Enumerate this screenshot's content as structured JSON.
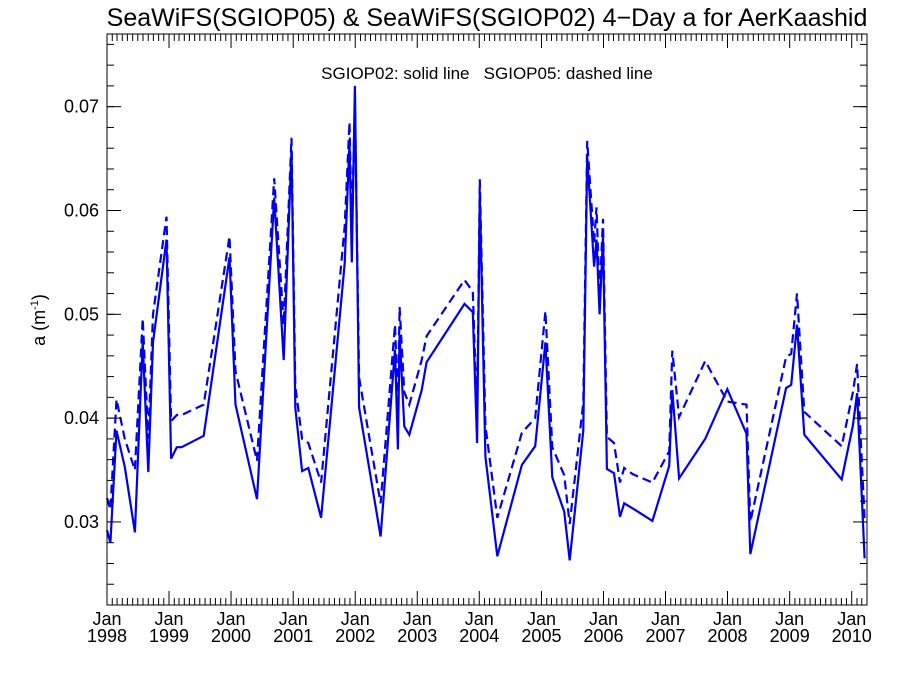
{
  "colors": {
    "series": "#0000ee",
    "axis": "#000000",
    "background": "#ffffff"
  },
  "chart_data": {
    "type": "line",
    "title": "SeaWiFS(SGIOP05) & SeaWiFS(SGIOP02) 4−Day a for AerKaashid",
    "annotation": "SGIOP02: solid line   SGIOP05: dashed line",
    "ylabel": {
      "main": "a (m",
      "sup": "-1",
      "close": ")"
    },
    "xlabel": "",
    "grid": false,
    "legend": "none",
    "xlim": [
      "1998-01-01",
      "2010-04-01"
    ],
    "ylim": [
      0.022,
      0.077
    ],
    "yticks": [
      0.03,
      0.04,
      0.05,
      0.06,
      0.07
    ],
    "ytick_labels": [
      "0.03",
      "0.04",
      "0.05",
      "0.06",
      "0.07"
    ],
    "xticks": [
      "1998-01-01",
      "1999-01-01",
      "2000-01-01",
      "2001-01-01",
      "2002-01-01",
      "2003-01-01",
      "2004-01-01",
      "2005-01-01",
      "2006-01-01",
      "2007-01-01",
      "2008-01-01",
      "2009-01-01",
      "2010-01-01"
    ],
    "xtick_labels": [
      [
        "Jan",
        "1998"
      ],
      [
        "Jan",
        "1999"
      ],
      [
        "Jan",
        "2000"
      ],
      [
        "Jan",
        "2001"
      ],
      [
        "Jan",
        "2002"
      ],
      [
        "Jan",
        "2003"
      ],
      [
        "Jan",
        "2004"
      ],
      [
        "Jan",
        "2005"
      ],
      [
        "Jan",
        "2006"
      ],
      [
        "Jan",
        "2007"
      ],
      [
        "Jan",
        "2008"
      ],
      [
        "Jan",
        "2009"
      ],
      [
        "Jan",
        "2010"
      ]
    ],
    "series": [
      {
        "name": "SGIOP02",
        "style": "solid",
        "x": [
          "1998-01-01",
          "1998-01-21",
          "1998-02-26",
          "1998-04-16",
          "1998-06-14",
          "1998-07-30",
          "1998-09-01",
          "1998-09-29",
          "1998-12-17",
          "1999-01-13",
          "1999-02-16",
          "1999-03-16",
          "1999-07-24",
          "1999-12-23",
          "2000-01-27",
          "2000-06-02",
          "2000-09-11",
          "2000-11-06",
          "2000-12-22",
          "2001-01-13",
          "2001-02-22",
          "2001-03-31",
          "2001-06-14",
          "2001-10-31",
          "2001-11-28",
          "2001-12-12",
          "2001-12-30",
          "2002-01-24",
          "2002-05-30",
          "2002-08-23",
          "2002-09-09",
          "2002-09-19",
          "2002-10-17",
          "2002-11-15",
          "2003-01-27",
          "2003-02-25",
          "2003-10-06",
          "2003-11-24",
          "2003-12-19",
          "2004-01-04",
          "2004-02-06",
          "2004-04-16",
          "2004-09-08",
          "2004-11-25",
          "2005-01-24",
          "2005-03-06",
          "2005-05-15",
          "2005-06-16",
          "2005-09-04",
          "2005-09-27",
          "2005-11-07",
          "2005-11-21",
          "2005-12-09",
          "2005-12-29",
          "2006-01-21",
          "2006-03-04",
          "2006-04-08",
          "2006-05-03",
          "2006-06-22",
          "2006-10-16",
          "2007-01-23",
          "2007-02-10",
          "2007-03-22",
          "2007-08-23",
          "2007-12-31",
          "2008-04-22",
          "2008-05-14",
          "2008-12-11",
          "2009-01-10",
          "2009-02-13",
          "2009-03-28",
          "2009-11-03",
          "2010-01-08",
          "2010-02-02",
          "2010-03-18"
        ],
        "y": [
          0.0292,
          0.028,
          0.0388,
          0.0353,
          0.029,
          0.0473,
          0.0348,
          0.0473,
          0.0572,
          0.0361,
          0.0372,
          0.0372,
          0.0383,
          0.0555,
          0.0413,
          0.0322,
          0.0612,
          0.0456,
          0.0658,
          0.041,
          0.0349,
          0.0352,
          0.0304,
          0.0549,
          0.0666,
          0.055,
          0.072,
          0.041,
          0.0286,
          0.0466,
          0.037,
          0.048,
          0.0392,
          0.0384,
          0.0427,
          0.0454,
          0.051,
          0.0502,
          0.0376,
          0.0617,
          0.0363,
          0.0267,
          0.0355,
          0.0373,
          0.0473,
          0.0343,
          0.031,
          0.0263,
          0.0388,
          0.0652,
          0.0546,
          0.0572,
          0.05,
          0.0575,
          0.0351,
          0.0347,
          0.0305,
          0.0318,
          0.0313,
          0.0301,
          0.0354,
          0.0427,
          0.0342,
          0.038,
          0.0428,
          0.0385,
          0.0269,
          0.0429,
          0.0432,
          0.049,
          0.0384,
          0.0341,
          0.0393,
          0.0424,
          0.0265
        ]
      },
      {
        "name": "SGIOP05",
        "style": "dashed",
        "x": [
          "1998-01-01",
          "1998-01-21",
          "1998-02-26",
          "1998-04-16",
          "1998-06-14",
          "1998-07-30",
          "1998-09-01",
          "1998-09-29",
          "1998-12-17",
          "1999-01-13",
          "1999-02-16",
          "1999-03-16",
          "1999-07-24",
          "1999-12-23",
          "2000-01-27",
          "2000-06-02",
          "2000-09-11",
          "2000-11-06",
          "2000-12-22",
          "2001-01-13",
          "2001-02-22",
          "2001-03-31",
          "2001-06-14",
          "2001-10-31",
          "2001-11-28",
          "2001-12-12",
          "2001-12-30",
          "2002-01-24",
          "2002-05-30",
          "2002-08-23",
          "2002-09-09",
          "2002-09-19",
          "2002-10-17",
          "2002-11-15",
          "2003-01-27",
          "2003-02-25",
          "2003-10-06",
          "2003-11-24",
          "2003-12-19",
          "2004-01-04",
          "2004-02-06",
          "2004-04-16",
          "2004-09-08",
          "2004-11-25",
          "2005-01-24",
          "2005-03-06",
          "2005-05-15",
          "2005-06-16",
          "2005-09-04",
          "2005-09-27",
          "2005-11-07",
          "2005-11-21",
          "2005-12-09",
          "2005-12-29",
          "2006-01-21",
          "2006-03-04",
          "2006-04-08",
          "2006-05-03",
          "2006-06-22",
          "2006-10-16",
          "2007-01-23",
          "2007-02-10",
          "2007-03-22",
          "2007-08-23",
          "2007-12-31",
          "2008-04-22",
          "2008-05-14",
          "2008-12-11",
          "2009-01-10",
          "2009-02-13",
          "2009-03-28",
          "2009-11-03",
          "2010-01-08",
          "2010-02-02",
          "2010-03-18"
        ],
        "y": [
          0.0323,
          0.0312,
          0.0418,
          0.038,
          0.035,
          0.0496,
          0.038,
          0.05,
          0.0594,
          0.0397,
          0.0403,
          0.0403,
          0.0413,
          0.0575,
          0.0445,
          0.0359,
          0.0631,
          0.049,
          0.067,
          0.0431,
          0.038,
          0.0376,
          0.0338,
          0.0585,
          0.0685,
          0.0578,
          0.0705,
          0.0439,
          0.0318,
          0.049,
          0.041,
          0.0507,
          0.0425,
          0.0413,
          0.0456,
          0.0479,
          0.0533,
          0.0522,
          0.04,
          0.063,
          0.0393,
          0.0304,
          0.0386,
          0.04,
          0.0503,
          0.0372,
          0.0345,
          0.0298,
          0.0415,
          0.0667,
          0.0568,
          0.0603,
          0.0518,
          0.0592,
          0.0382,
          0.0376,
          0.0338,
          0.0352,
          0.0346,
          0.0338,
          0.0368,
          0.0465,
          0.0401,
          0.0455,
          0.0416,
          0.0413,
          0.03,
          0.0459,
          0.0462,
          0.052,
          0.0406,
          0.0373,
          0.0425,
          0.0452,
          0.0303
        ]
      }
    ]
  }
}
